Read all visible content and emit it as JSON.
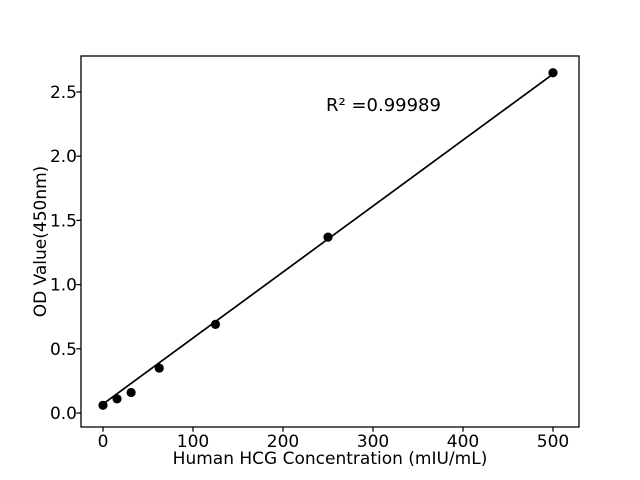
{
  "figure_background": "#ffffff",
  "chart_data": {
    "type": "scatter",
    "title": "",
    "xlabel": "Human HCG Concentration (mIU/mL)",
    "ylabel": "OD Value(450nm)",
    "annotation": "R² =0.99989",
    "r_squared": 0.99989,
    "x": [
      0,
      15.6,
      31.25,
      62.5,
      125,
      250,
      500
    ],
    "y": [
      0.06,
      0.11,
      0.16,
      0.35,
      0.69,
      1.37,
      2.65
    ],
    "trendline": {
      "x": [
        0,
        500
      ],
      "y": [
        0.07,
        2.64
      ]
    },
    "xticks": {
      "values": [
        0,
        100,
        200,
        300,
        400,
        500
      ],
      "labels": [
        "0",
        "100",
        "200",
        "300",
        "400",
        "500"
      ]
    },
    "yticks": {
      "values": [
        0,
        0.5,
        1.0,
        1.5,
        2.0,
        2.5
      ],
      "labels": [
        "0.0",
        "0.5",
        "1.0",
        "1.5",
        "2.0",
        "2.5"
      ]
    },
    "xlim": [
      -24.4,
      528.9
    ],
    "ylim": [
      -0.11,
      2.78
    ],
    "grid": false,
    "legend": null,
    "marker_color": "#000000",
    "line_color": "#000000",
    "axis_color": "#000000"
  }
}
